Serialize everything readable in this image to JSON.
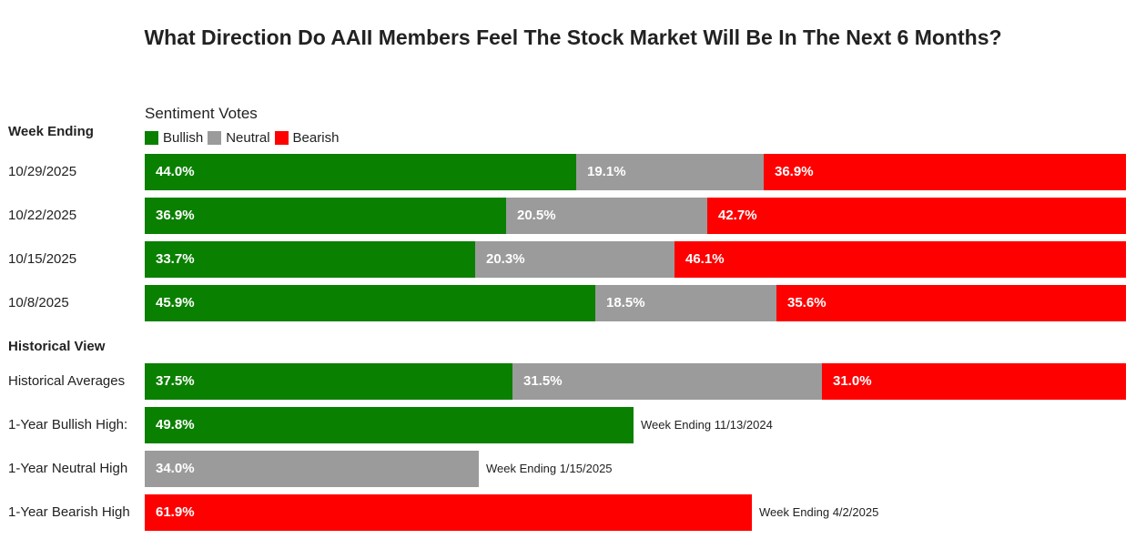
{
  "chart_data": {
    "type": "stacked-bar",
    "title": "What Direction Do AAII Members Feel The Stock Market Will Be In The Next 6 Months?",
    "legend_title": "Sentiment Votes",
    "legend": [
      {
        "name": "Bullish",
        "color": "#0a8000"
      },
      {
        "name": "Neutral",
        "color": "#9b9b9b"
      },
      {
        "name": "Bearish",
        "color": "#ff0000"
      }
    ],
    "week_section_label": "Week Ending",
    "weeks": [
      {
        "label": "10/29/2025",
        "bullish": 44.0,
        "neutral": 19.1,
        "bearish": 36.9
      },
      {
        "label": "10/22/2025",
        "bullish": 36.9,
        "neutral": 20.5,
        "bearish": 42.7
      },
      {
        "label": "10/15/2025",
        "bullish": 33.7,
        "neutral": 20.3,
        "bearish": 46.1
      },
      {
        "label": "10/8/2025",
        "bullish": 45.9,
        "neutral": 18.5,
        "bearish": 35.6
      }
    ],
    "historical_section_label": "Historical View",
    "historical_averages": {
      "label": "Historical Averages",
      "bullish": 37.5,
      "neutral": 31.5,
      "bearish": 31.0
    },
    "highs": [
      {
        "label": "1-Year Bullish High:",
        "series": "Bullish",
        "value": 49.8,
        "note": "Week Ending 11/13/2024"
      },
      {
        "label": "1-Year Neutral High",
        "series": "Neutral",
        "value": 34.0,
        "note": "Week Ending 1/15/2025"
      },
      {
        "label": "1-Year Bearish High",
        "series": "Bearish",
        "value": 61.9,
        "note": "Week Ending 4/2/2025"
      }
    ],
    "xlim": [
      0,
      100
    ]
  }
}
